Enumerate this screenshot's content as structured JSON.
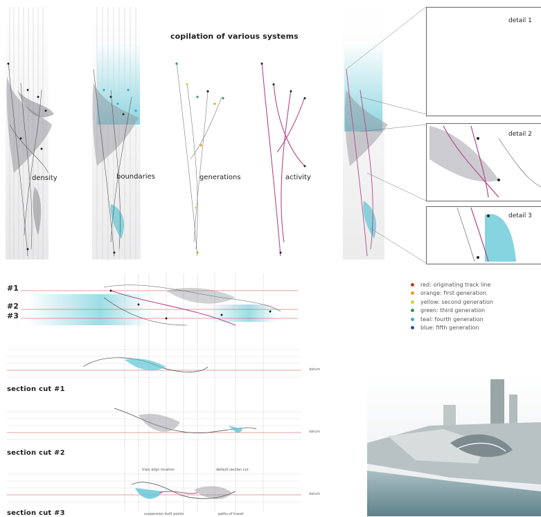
{
  "header": {
    "title": "copilation of various systems"
  },
  "systems": {
    "density": "density",
    "boundaries": "boundaries",
    "generations": "generations",
    "activity": "activity"
  },
  "details": {
    "d1": "detail 1",
    "d2": "detail 2",
    "d3": "detail 3"
  },
  "cuts": {
    "c1": "#1",
    "c2": "#2",
    "c3": "#3"
  },
  "sections": {
    "s1": "section cut #1",
    "s2": "section cut #2",
    "s3": "section cut #3"
  },
  "datum": {
    "label": "datum"
  },
  "annotations": {
    "a1": "train align location",
    "a2": "default section cut",
    "a3": "suspension built points",
    "a4": "paths of travel"
  },
  "legend": [
    {
      "color": "#c0392b",
      "label": "red: originating track line"
    },
    {
      "color": "#e0a030",
      "label": "orange: first generation"
    },
    {
      "color": "#d8cf3a",
      "label": "yellow: second generation"
    },
    {
      "color": "#2e9a55",
      "label": "green: third generation"
    },
    {
      "color": "#2eb3c4",
      "label": "teal: fourth generation"
    },
    {
      "color": "#2f4f9a",
      "label": "blue: fifth generation"
    }
  ],
  "colors": {
    "teal": "#5cc6d6",
    "magenta": "#b5468a",
    "grey": "#9a9aa2"
  }
}
